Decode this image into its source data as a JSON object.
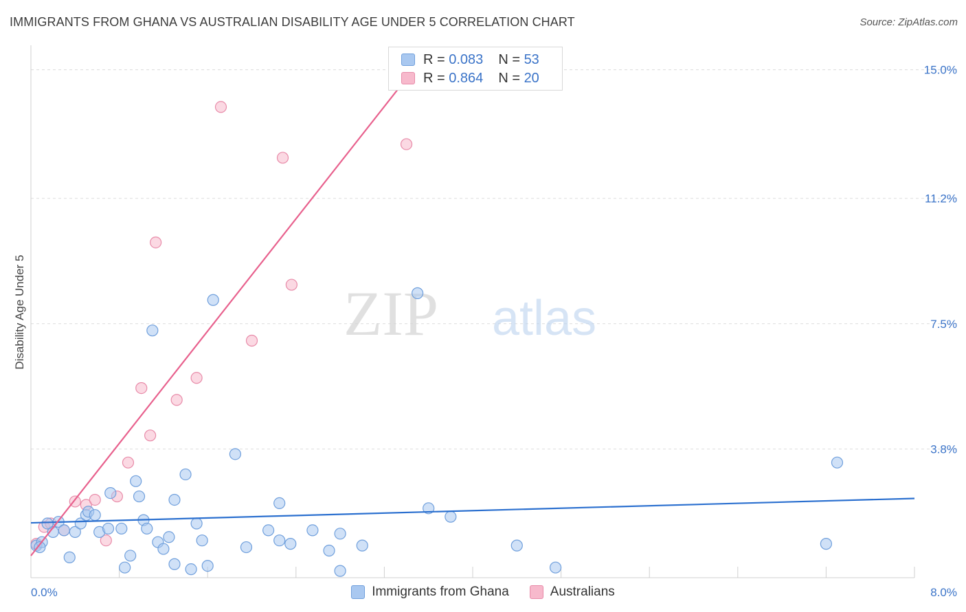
{
  "title": "IMMIGRANTS FROM GHANA VS AUSTRALIAN DISABILITY AGE UNDER 5 CORRELATION CHART",
  "source": "Source: ZipAtlas.com",
  "watermark": {
    "zip": "ZIP",
    "atlas": "atlas"
  },
  "legend": {
    "r_label": "R =",
    "n_label": "N =",
    "series": [
      {
        "r": "0.083",
        "n": "53"
      },
      {
        "r": "0.864",
        "n": "20"
      }
    ]
  },
  "colors": {
    "blue_fill": "#a9c8f0",
    "blue_stroke": "#6f9fdc",
    "blue_line": "#2a6fcf",
    "pink_fill": "#f7b9cc",
    "pink_stroke": "#e88aa8",
    "pink_line": "#e8608d",
    "tick_text": "#3a73c8",
    "grid": "#dcdcdc"
  },
  "chart_data": {
    "type": "scatter",
    "title": "IMMIGRANTS FROM GHANA VS AUSTRALIAN DISABILITY AGE UNDER 5 CORRELATION CHART",
    "xlabel": "Immigrants from Ghana",
    "ylabel": "Disability Age Under 5",
    "xlim": [
      0,
      8.0
    ],
    "ylim": [
      0,
      15.6
    ],
    "x_tick_labels": [
      "0.0%",
      "8.0%"
    ],
    "y_ticks": [
      3.8,
      7.5,
      11.2,
      15.0
    ],
    "y_tick_labels": [
      "3.8%",
      "7.5%",
      "11.2%",
      "15.0%"
    ],
    "grid": true,
    "series": [
      {
        "name": "Immigrants from Ghana",
        "color": "#a9c8f0",
        "r": 0.083,
        "n": 53,
        "trend": {
          "x": [
            0.0,
            8.0
          ],
          "y": [
            1.62,
            2.34
          ]
        },
        "points": [
          [
            0.05,
            0.95
          ],
          [
            0.1,
            1.05
          ],
          [
            0.2,
            1.35
          ],
          [
            0.25,
            1.65
          ],
          [
            0.3,
            1.4
          ],
          [
            0.35,
            0.6
          ],
          [
            0.4,
            1.35
          ],
          [
            0.45,
            1.6
          ],
          [
            0.5,
            1.85
          ],
          [
            0.52,
            1.95
          ],
          [
            0.58,
            1.85
          ],
          [
            0.62,
            1.35
          ],
          [
            0.7,
            1.45
          ],
          [
            0.72,
            2.5
          ],
          [
            0.82,
            1.45
          ],
          [
            0.85,
            0.3
          ],
          [
            0.9,
            0.65
          ],
          [
            0.95,
            2.85
          ],
          [
            0.98,
            2.4
          ],
          [
            1.02,
            1.7
          ],
          [
            1.05,
            1.45
          ],
          [
            1.1,
            7.3
          ],
          [
            1.15,
            1.05
          ],
          [
            1.2,
            0.85
          ],
          [
            1.25,
            1.2
          ],
          [
            1.3,
            2.3
          ],
          [
            1.3,
            0.4
          ],
          [
            1.4,
            3.05
          ],
          [
            1.45,
            0.25
          ],
          [
            1.5,
            1.6
          ],
          [
            1.55,
            1.1
          ],
          [
            1.6,
            0.35
          ],
          [
            1.65,
            8.2
          ],
          [
            1.85,
            3.65
          ],
          [
            1.95,
            0.9
          ],
          [
            2.15,
            1.4
          ],
          [
            2.25,
            2.2
          ],
          [
            2.25,
            1.1
          ],
          [
            2.35,
            1.0
          ],
          [
            2.55,
            1.4
          ],
          [
            2.7,
            0.8
          ],
          [
            2.8,
            1.3
          ],
          [
            2.8,
            0.2
          ],
          [
            3.0,
            0.95
          ],
          [
            3.5,
            8.4
          ],
          [
            3.6,
            2.05
          ],
          [
            3.8,
            1.8
          ],
          [
            4.4,
            0.95
          ],
          [
            4.75,
            0.3
          ],
          [
            7.2,
            1.0
          ],
          [
            7.3,
            3.4
          ],
          [
            0.15,
            1.6
          ],
          [
            0.08,
            0.9
          ]
        ]
      },
      {
        "name": "Australians",
        "color": "#f7b9cc",
        "r": 0.864,
        "n": 20,
        "trend": {
          "x": [
            0.0,
            3.45
          ],
          "y": [
            0.65,
            14.95
          ]
        },
        "points": [
          [
            0.05,
            1.0
          ],
          [
            0.12,
            1.5
          ],
          [
            0.18,
            1.6
          ],
          [
            0.3,
            1.4
          ],
          [
            0.4,
            2.25
          ],
          [
            0.5,
            2.15
          ],
          [
            0.58,
            2.3
          ],
          [
            0.68,
            1.1
          ],
          [
            0.78,
            2.4
          ],
          [
            0.88,
            3.4
          ],
          [
            1.0,
            5.6
          ],
          [
            1.08,
            4.2
          ],
          [
            1.13,
            9.9
          ],
          [
            1.32,
            5.25
          ],
          [
            1.5,
            5.9
          ],
          [
            1.72,
            13.9
          ],
          [
            2.0,
            7.0
          ],
          [
            2.28,
            12.4
          ],
          [
            2.36,
            8.65
          ],
          [
            3.4,
            12.8
          ]
        ]
      }
    ]
  }
}
